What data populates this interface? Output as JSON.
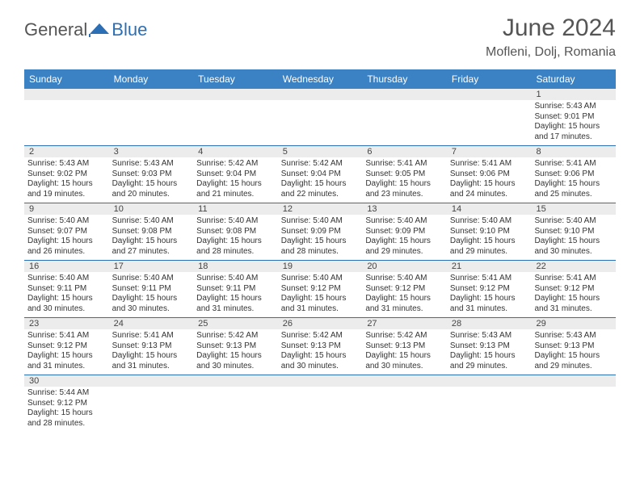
{
  "brand": {
    "part1": "General",
    "part2": "Blue"
  },
  "title": "June 2024",
  "location": "Mofleni, Dolj, Romania",
  "colors": {
    "header_bg": "#3b82c4",
    "header_text": "#ffffff",
    "border": "#2d6fb5",
    "daynum_bg": "#ececec",
    "text": "#333333",
    "brand_gray": "#555555",
    "brand_blue": "#2d6fb5"
  },
  "day_names": [
    "Sunday",
    "Monday",
    "Tuesday",
    "Wednesday",
    "Thursday",
    "Friday",
    "Saturday"
  ],
  "weeks": [
    {
      "nums": [
        "",
        "",
        "",
        "",
        "",
        "",
        "1"
      ],
      "cells": [
        null,
        null,
        null,
        null,
        null,
        null,
        {
          "sunrise": "5:43 AM",
          "sunset": "9:01 PM",
          "daylight": "15 hours and 17 minutes."
        }
      ]
    },
    {
      "nums": [
        "2",
        "3",
        "4",
        "5",
        "6",
        "7",
        "8"
      ],
      "cells": [
        {
          "sunrise": "5:43 AM",
          "sunset": "9:02 PM",
          "daylight": "15 hours and 19 minutes."
        },
        {
          "sunrise": "5:43 AM",
          "sunset": "9:03 PM",
          "daylight": "15 hours and 20 minutes."
        },
        {
          "sunrise": "5:42 AM",
          "sunset": "9:04 PM",
          "daylight": "15 hours and 21 minutes."
        },
        {
          "sunrise": "5:42 AM",
          "sunset": "9:04 PM",
          "daylight": "15 hours and 22 minutes."
        },
        {
          "sunrise": "5:41 AM",
          "sunset": "9:05 PM",
          "daylight": "15 hours and 23 minutes."
        },
        {
          "sunrise": "5:41 AM",
          "sunset": "9:06 PM",
          "daylight": "15 hours and 24 minutes."
        },
        {
          "sunrise": "5:41 AM",
          "sunset": "9:06 PM",
          "daylight": "15 hours and 25 minutes."
        }
      ]
    },
    {
      "nums": [
        "9",
        "10",
        "11",
        "12",
        "13",
        "14",
        "15"
      ],
      "cells": [
        {
          "sunrise": "5:40 AM",
          "sunset": "9:07 PM",
          "daylight": "15 hours and 26 minutes."
        },
        {
          "sunrise": "5:40 AM",
          "sunset": "9:08 PM",
          "daylight": "15 hours and 27 minutes."
        },
        {
          "sunrise": "5:40 AM",
          "sunset": "9:08 PM",
          "daylight": "15 hours and 28 minutes."
        },
        {
          "sunrise": "5:40 AM",
          "sunset": "9:09 PM",
          "daylight": "15 hours and 28 minutes."
        },
        {
          "sunrise": "5:40 AM",
          "sunset": "9:09 PM",
          "daylight": "15 hours and 29 minutes."
        },
        {
          "sunrise": "5:40 AM",
          "sunset": "9:10 PM",
          "daylight": "15 hours and 29 minutes."
        },
        {
          "sunrise": "5:40 AM",
          "sunset": "9:10 PM",
          "daylight": "15 hours and 30 minutes."
        }
      ]
    },
    {
      "nums": [
        "16",
        "17",
        "18",
        "19",
        "20",
        "21",
        "22"
      ],
      "cells": [
        {
          "sunrise": "5:40 AM",
          "sunset": "9:11 PM",
          "daylight": "15 hours and 30 minutes."
        },
        {
          "sunrise": "5:40 AM",
          "sunset": "9:11 PM",
          "daylight": "15 hours and 30 minutes."
        },
        {
          "sunrise": "5:40 AM",
          "sunset": "9:11 PM",
          "daylight": "15 hours and 31 minutes."
        },
        {
          "sunrise": "5:40 AM",
          "sunset": "9:12 PM",
          "daylight": "15 hours and 31 minutes."
        },
        {
          "sunrise": "5:40 AM",
          "sunset": "9:12 PM",
          "daylight": "15 hours and 31 minutes."
        },
        {
          "sunrise": "5:41 AM",
          "sunset": "9:12 PM",
          "daylight": "15 hours and 31 minutes."
        },
        {
          "sunrise": "5:41 AM",
          "sunset": "9:12 PM",
          "daylight": "15 hours and 31 minutes."
        }
      ]
    },
    {
      "nums": [
        "23",
        "24",
        "25",
        "26",
        "27",
        "28",
        "29"
      ],
      "cells": [
        {
          "sunrise": "5:41 AM",
          "sunset": "9:12 PM",
          "daylight": "15 hours and 31 minutes."
        },
        {
          "sunrise": "5:41 AM",
          "sunset": "9:13 PM",
          "daylight": "15 hours and 31 minutes."
        },
        {
          "sunrise": "5:42 AM",
          "sunset": "9:13 PM",
          "daylight": "15 hours and 30 minutes."
        },
        {
          "sunrise": "5:42 AM",
          "sunset": "9:13 PM",
          "daylight": "15 hours and 30 minutes."
        },
        {
          "sunrise": "5:42 AM",
          "sunset": "9:13 PM",
          "daylight": "15 hours and 30 minutes."
        },
        {
          "sunrise": "5:43 AM",
          "sunset": "9:13 PM",
          "daylight": "15 hours and 29 minutes."
        },
        {
          "sunrise": "5:43 AM",
          "sunset": "9:13 PM",
          "daylight": "15 hours and 29 minutes."
        }
      ]
    },
    {
      "nums": [
        "30",
        "",
        "",
        "",
        "",
        "",
        ""
      ],
      "cells": [
        {
          "sunrise": "5:44 AM",
          "sunset": "9:12 PM",
          "daylight": "15 hours and 28 minutes."
        },
        null,
        null,
        null,
        null,
        null,
        null
      ]
    }
  ],
  "labels": {
    "sunrise": "Sunrise:",
    "sunset": "Sunset:",
    "daylight": "Daylight:"
  }
}
